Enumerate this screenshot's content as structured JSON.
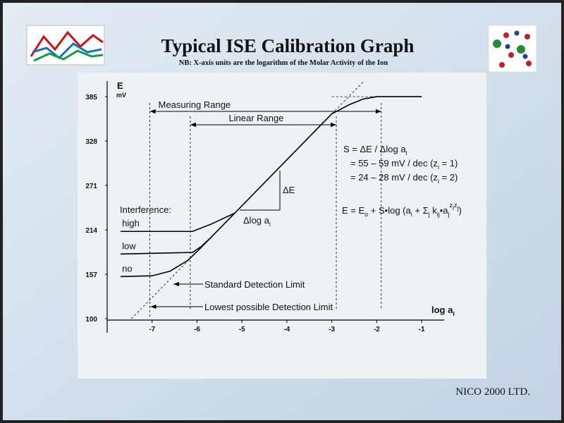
{
  "header": {
    "title": "Typical ISE Calibration Graph",
    "subtitle": "NB: X-axis units are the logarithm of the Molar Activity of the Ion"
  },
  "footer": "NICO 2000 LTD.",
  "chart_data": {
    "type": "line",
    "y_label": "E",
    "y_unit": "mV",
    "x_label": [
      "log a",
      {
        "sub": "i"
      }
    ],
    "xlim": [
      -8,
      -0.5
    ],
    "ylim": [
      100,
      405
    ],
    "xticks": [
      -7,
      -6,
      -5,
      -4,
      -3,
      -2,
      -1
    ],
    "yticks": [
      100,
      157,
      214,
      271,
      328,
      385
    ],
    "color": "#000000",
    "series_heading": "Interference:",
    "series": [
      {
        "x": [
          -5.95,
          -5.16,
          -4,
          -3,
          -2.6,
          -2.3,
          -2,
          -1
        ],
        "values": [
          189,
          235.5,
          304,
          363,
          375,
          382,
          385,
          385
        ]
      },
      {
        "name": "high",
        "x": [
          -7.7,
          -6.1,
          -5.7,
          -5.16
        ],
        "values": [
          212,
          212,
          221,
          235.5
        ]
      },
      {
        "name": "low",
        "x": [
          -7.7,
          -6.1,
          -5.9,
          -5.7
        ],
        "values": [
          183,
          185,
          193,
          203.7
        ]
      },
      {
        "name": "no",
        "x": [
          -7.7,
          -7,
          -6.6,
          -6.2,
          -5.95
        ],
        "values": [
          154,
          155,
          161,
          175,
          189
        ]
      },
      {
        "x": [
          -7.46,
          -5.95
        ],
        "values": [
          100,
          189
        ],
        "dashed": true
      },
      {
        "x": [
          -3,
          -2.3
        ],
        "values": [
          363,
          404
        ],
        "dashed": true
      },
      {
        "x": [
          -3,
          -1.9
        ],
        "values": [
          385,
          385
        ],
        "dashed": true
      }
    ],
    "ranges": [
      {
        "label": "Measuring Range",
        "from": -7.05,
        "to": -1.9
      },
      {
        "label": "Linear Range",
        "from": -6.15,
        "to": -2.9
      }
    ],
    "limits": [
      {
        "label": "Standard Detection Limit",
        "x": -6.54
      },
      {
        "label": "Lowest possible Detection Limit",
        "x": -7.05
      }
    ],
    "annotations": {
      "delta_e": [
        "ΔE"
      ],
      "delta_log": [
        "Δlog a",
        {
          "sub": "i"
        }
      ],
      "formulas": [
        [
          "S = ΔE  /  Δlog a",
          {
            "sub": "i"
          }
        ],
        [
          "= 55 – 59 mV / dec (z",
          {
            "sub": "i"
          },
          " = 1)"
        ],
        [
          "= 24 – 28 mV / dec (z",
          {
            "sub": "i"
          },
          " = 2)"
        ],
        [
          "E = E",
          {
            "sub": "o"
          },
          " + S•log (a",
          {
            "sub": "i"
          },
          " + Σ",
          {
            "sub": "j"
          },
          " k",
          {
            "sub": "ij"
          },
          "•a",
          {
            "sub": "j"
          },
          {
            "sup": "z"
          },
          {
            "supsub": "i"
          },
          {
            "sup": "z"
          },
          {
            "supsub": "j"
          },
          ")"
        ]
      ]
    }
  }
}
